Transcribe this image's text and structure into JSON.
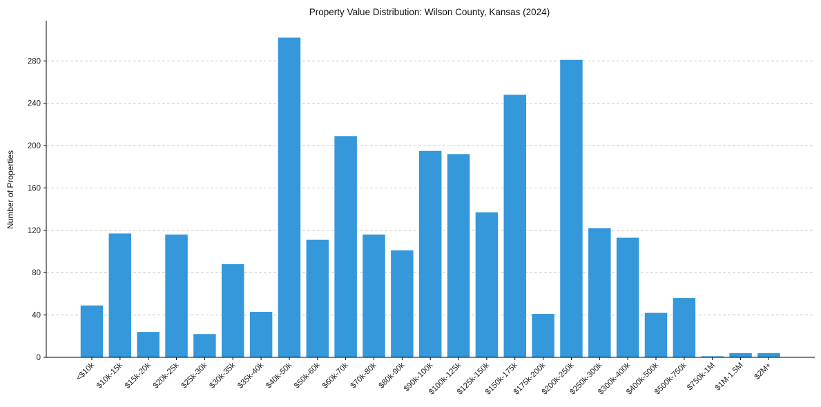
{
  "chart_data": {
    "type": "bar",
    "title": "Property Value Distribution: Wilson County, Kansas (2024)",
    "xlabel": "",
    "ylabel": "Number of Properties",
    "ylim": [
      0,
      318
    ],
    "yticks": [
      0,
      40,
      80,
      120,
      160,
      200,
      240,
      280
    ],
    "grid": true,
    "bar_color": "#3498db",
    "categories": [
      "<$10k",
      "$10k-15k",
      "$15k-20k",
      "$20k-25k",
      "$25k-30k",
      "$30k-35k",
      "$35k-40k",
      "$40k-50k",
      "$50k-60k",
      "$60k-70k",
      "$70k-80k",
      "$80k-90k",
      "$90k-100k",
      "$100k-125k",
      "$125k-150k",
      "$150k-175k",
      "$175k-200k",
      "$200k-250k",
      "$250k-300k",
      "$300k-400k",
      "$400k-500k",
      "$500k-750k",
      "$750k-1M",
      "$1M-1.5M",
      "$2M+"
    ],
    "values": [
      49,
      117,
      24,
      116,
      22,
      88,
      43,
      302,
      111,
      209,
      116,
      101,
      195,
      192,
      137,
      248,
      41,
      281,
      122,
      113,
      42,
      56,
      1,
      4,
      4
    ]
  }
}
